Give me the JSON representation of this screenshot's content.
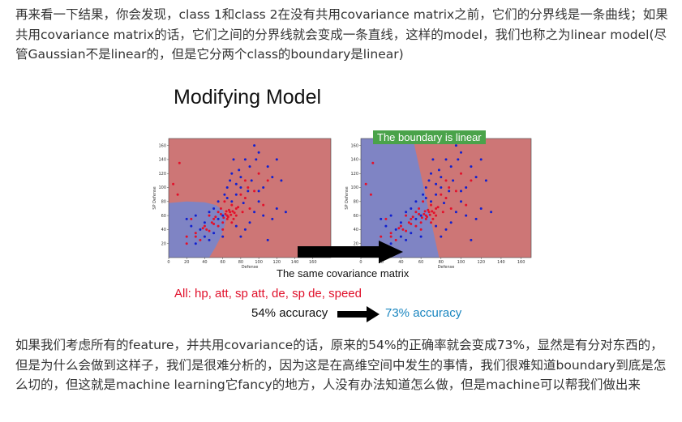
{
  "paragraphs": {
    "intro": "再来看一下结果，你会发现，class 1和class 2在没有共用covariance matrix之前，它们的分界线是一条曲线；如果共用covariance matrix的话，它们之间的分界线就会变成一条直线，这样的model，我们也称之为linear model(尽管Gaussian不是linear的，但是它分两个class的boundary是linear)",
    "outro": "如果我们考虑所有的feature，并共用covariance的话，原来的54%的正确率就会变成73%，显然是有分对东西的，但是为什么会做到这样子，我们是很难分析的，因为这是在高维空间中发生的事情，我们很难知道boundary到底是怎么切的，但这就是machine learning它fancy的地方，人没有办法知道怎么做，但是machine可以帮我们做出来"
  },
  "slide": {
    "title": "Modifying Model",
    "boundary_label": "The boundary is linear",
    "caption": "The same covariance matrix",
    "features_line": "All: hp, att, sp att, de, sp de, speed",
    "accuracy_before": "54% accuracy",
    "accuracy_after": "73% accuracy"
  },
  "colors": {
    "region_red": "#cd7676",
    "region_blue": "#7f84c4",
    "point_red": "#e3102a",
    "point_blue": "#1020d0",
    "label_green": "#4aa34a",
    "features_red": "#e0102a",
    "accuracy_blue": "#1a86c0"
  },
  "chart_data": [
    {
      "type": "scatter",
      "title": "",
      "xlabel": "Defense",
      "ylabel": "SP Defense",
      "xlim": [
        0,
        180
      ],
      "ylim": [
        0,
        170
      ],
      "xticks": [
        "0",
        "20",
        "40",
        "60",
        "80",
        "100",
        "120",
        "140",
        "160"
      ],
      "yticks": [
        "20",
        "40",
        "60",
        "80",
        "100",
        "120",
        "140",
        "160"
      ],
      "boundary": "curved",
      "series": [
        {
          "values": [
            [
              5,
              105
            ],
            [
              12,
              135
            ],
            [
              10,
              90
            ],
            [
              20,
              30
            ],
            [
              25,
              55
            ],
            [
              30,
              35
            ],
            [
              40,
              45
            ],
            [
              45,
              60
            ],
            [
              50,
              55
            ],
            [
              55,
              65
            ],
            [
              58,
              70
            ],
            [
              60,
              50
            ],
            [
              62,
              80
            ],
            [
              65,
              60
            ],
            [
              68,
              65
            ],
            [
              70,
              75
            ],
            [
              72,
              55
            ],
            [
              75,
              70
            ],
            [
              80,
              90
            ],
            [
              82,
              65
            ],
            [
              85,
              85
            ],
            [
              88,
              100
            ],
            [
              90,
              70
            ],
            [
              95,
              95
            ],
            [
              100,
              120
            ],
            [
              105,
              75
            ],
            [
              55,
              45
            ],
            [
              60,
              40
            ],
            [
              65,
              55
            ],
            [
              70,
              50
            ],
            [
              75,
              60
            ],
            [
              48,
              50
            ],
            [
              52,
              58
            ],
            [
              35,
              25
            ],
            [
              42,
              40
            ],
            [
              20,
              20
            ],
            [
              30,
              30
            ],
            [
              38,
              42
            ],
            [
              45,
              38
            ],
            [
              50,
              48
            ],
            [
              63,
              62
            ],
            [
              67,
              68
            ],
            [
              73,
              64
            ],
            [
              77,
              72
            ],
            [
              66,
              58
            ],
            [
              69,
              61
            ],
            [
              71,
              66
            ],
            [
              61,
              57
            ],
            [
              64,
              66
            ],
            [
              58,
              62
            ],
            [
              110,
              110
            ],
            [
              85,
              110
            ]
          ]
        },
        {
          "values": [
            [
              20,
              55
            ],
            [
              25,
              45
            ],
            [
              30,
              60
            ],
            [
              35,
              40
            ],
            [
              40,
              50
            ],
            [
              45,
              65
            ],
            [
              50,
              70
            ],
            [
              55,
              80
            ],
            [
              60,
              60
            ],
            [
              65,
              100
            ],
            [
              70,
              120
            ],
            [
              75,
              90
            ],
            [
              80,
              115
            ],
            [
              85,
              140
            ],
            [
              90,
              130
            ],
            [
              95,
              160
            ],
            [
              100,
              150
            ],
            [
              105,
              100
            ],
            [
              110,
              130
            ],
            [
              115,
              115
            ],
            [
              120,
              140
            ],
            [
              125,
              110
            ],
            [
              130,
              65
            ],
            [
              100,
              80
            ],
            [
              95,
              65
            ],
            [
              90,
              50
            ],
            [
              85,
              40
            ],
            [
              80,
              30
            ],
            [
              110,
              25
            ],
            [
              75,
              45
            ],
            [
              60,
              30
            ],
            [
              50,
              35
            ],
            [
              40,
              30
            ],
            [
              70,
              80
            ],
            [
              65,
              85
            ],
            [
              75,
              105
            ],
            [
              80,
              100
            ],
            [
              88,
              95
            ],
            [
              92,
              110
            ],
            [
              100,
              95
            ],
            [
              105,
              60
            ],
            [
              115,
              55
            ],
            [
              120,
              70
            ],
            [
              30,
              20
            ],
            [
              45,
              25
            ],
            [
              55,
              55
            ],
            [
              62,
              90
            ],
            [
              68,
              110
            ],
            [
              72,
              140
            ],
            [
              78,
              125
            ],
            [
              83,
              78
            ],
            [
              97,
              140
            ]
          ]
        }
      ]
    },
    {
      "type": "scatter",
      "title": "",
      "xlabel": "Defense",
      "ylabel": "SP Defense",
      "xlim": [
        0,
        170
      ],
      "ylim": [
        0,
        170
      ],
      "xticks": [
        "0",
        "20",
        "40",
        "60",
        "80",
        "100",
        "120",
        "140",
        "160"
      ],
      "yticks": [
        "20",
        "40",
        "60",
        "80",
        "100",
        "120",
        "140",
        "160"
      ],
      "boundary": "linear",
      "series": [
        {
          "values": [
            [
              5,
              105
            ],
            [
              12,
              135
            ],
            [
              10,
              90
            ],
            [
              20,
              30
            ],
            [
              25,
              55
            ],
            [
              30,
              35
            ],
            [
              40,
              45
            ],
            [
              45,
              60
            ],
            [
              50,
              55
            ],
            [
              55,
              65
            ],
            [
              58,
              70
            ],
            [
              60,
              50
            ],
            [
              62,
              80
            ],
            [
              65,
              60
            ],
            [
              68,
              65
            ],
            [
              70,
              75
            ],
            [
              72,
              55
            ],
            [
              75,
              70
            ],
            [
              80,
              90
            ],
            [
              82,
              65
            ],
            [
              85,
              85
            ],
            [
              88,
              100
            ],
            [
              90,
              70
            ],
            [
              95,
              95
            ],
            [
              100,
              120
            ],
            [
              105,
              75
            ],
            [
              55,
              45
            ],
            [
              60,
              40
            ],
            [
              65,
              55
            ],
            [
              70,
              50
            ],
            [
              75,
              60
            ],
            [
              48,
              50
            ],
            [
              52,
              58
            ],
            [
              35,
              25
            ],
            [
              42,
              40
            ],
            [
              20,
              20
            ],
            [
              30,
              30
            ],
            [
              38,
              42
            ],
            [
              45,
              38
            ],
            [
              50,
              48
            ],
            [
              63,
              62
            ],
            [
              67,
              68
            ],
            [
              73,
              64
            ],
            [
              77,
              72
            ],
            [
              66,
              58
            ],
            [
              69,
              61
            ],
            [
              71,
              66
            ],
            [
              61,
              57
            ],
            [
              64,
              66
            ],
            [
              58,
              62
            ],
            [
              110,
              110
            ],
            [
              85,
              110
            ]
          ]
        },
        {
          "values": [
            [
              20,
              55
            ],
            [
              25,
              45
            ],
            [
              30,
              60
            ],
            [
              35,
              40
            ],
            [
              40,
              50
            ],
            [
              45,
              65
            ],
            [
              50,
              70
            ],
            [
              55,
              80
            ],
            [
              60,
              60
            ],
            [
              65,
              100
            ],
            [
              70,
              120
            ],
            [
              75,
              90
            ],
            [
              80,
              115
            ],
            [
              85,
              140
            ],
            [
              90,
              130
            ],
            [
              95,
              160
            ],
            [
              100,
              150
            ],
            [
              105,
              100
            ],
            [
              110,
              130
            ],
            [
              115,
              115
            ],
            [
              120,
              140
            ],
            [
              125,
              110
            ],
            [
              130,
              65
            ],
            [
              100,
              80
            ],
            [
              95,
              65
            ],
            [
              90,
              50
            ],
            [
              85,
              40
            ],
            [
              80,
              30
            ],
            [
              110,
              25
            ],
            [
              75,
              45
            ],
            [
              60,
              30
            ],
            [
              50,
              35
            ],
            [
              40,
              30
            ],
            [
              70,
              80
            ],
            [
              65,
              85
            ],
            [
              75,
              105
            ],
            [
              80,
              100
            ],
            [
              88,
              95
            ],
            [
              92,
              110
            ],
            [
              100,
              95
            ],
            [
              105,
              60
            ],
            [
              115,
              55
            ],
            [
              120,
              70
            ],
            [
              30,
              20
            ],
            [
              45,
              25
            ],
            [
              55,
              55
            ],
            [
              62,
              90
            ],
            [
              68,
              110
            ],
            [
              72,
              140
            ],
            [
              78,
              125
            ],
            [
              83,
              78
            ],
            [
              97,
              140
            ]
          ]
        }
      ]
    }
  ]
}
